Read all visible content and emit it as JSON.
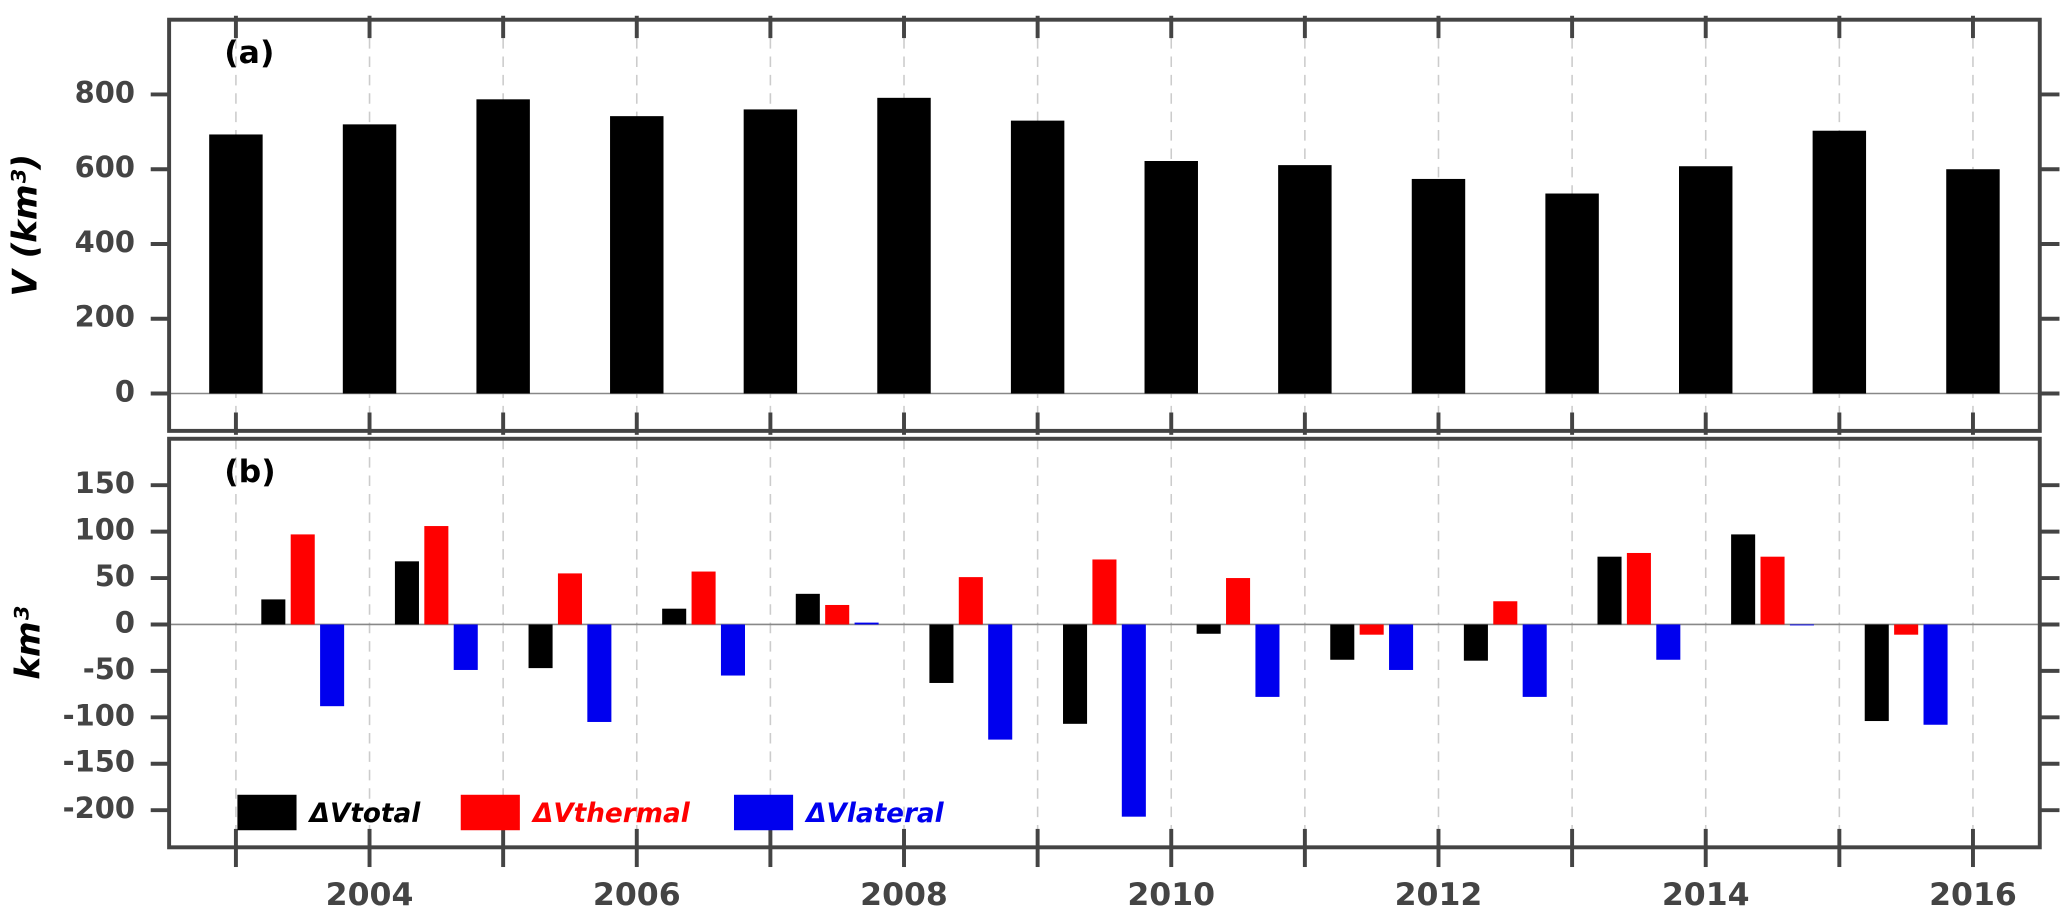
{
  "chart_data": [
    {
      "type": "bar",
      "panel_label": "(a)",
      "y_label": "V (km³)",
      "x": [
        2003,
        2004,
        2005,
        2006,
        2007,
        2008,
        2009,
        2010,
        2011,
        2012,
        2013,
        2014,
        2015,
        2016
      ],
      "series": [
        {
          "name": "V",
          "color": "#000000",
          "values": [
            693,
            720,
            787,
            742,
            760,
            791,
            730,
            622,
            611,
            574,
            535,
            608,
            703,
            600
          ]
        }
      ],
      "xlim": [
        2002.5,
        2016.5
      ],
      "xticks": [
        2004,
        2006,
        2008,
        2010,
        2012,
        2014,
        2016
      ],
      "xminor_ticks": [
        2003,
        2005,
        2007,
        2009,
        2011,
        2013,
        2015
      ],
      "ylim": [
        -100,
        1000
      ],
      "yticks": [
        0,
        200,
        400,
        600,
        800
      ],
      "grid": true
    },
    {
      "type": "grouped_bar",
      "panel_label": "(b)",
      "y_label": "km³",
      "x": [
        2003.5,
        2004.5,
        2005.5,
        2006.5,
        2007.5,
        2008.5,
        2009.5,
        2010.5,
        2011.5,
        2012.5,
        2013.5,
        2014.5,
        2015.5
      ],
      "series": [
        {
          "name": "ΔVtotal",
          "color": "#000000",
          "values": [
            27,
            68,
            -47,
            17,
            33,
            -63,
            -107,
            -10,
            -38,
            -39,
            73,
            97,
            -104
          ]
        },
        {
          "name": "ΔVthermal",
          "color": "#ff0000",
          "values": [
            97,
            106,
            55,
            57,
            21,
            51,
            70,
            50,
            -11,
            25,
            77,
            73,
            -11
          ]
        },
        {
          "name": "ΔVlateral",
          "color": "#0000ee",
          "values": [
            -88,
            -49,
            -105,
            -55,
            2,
            -124,
            -207,
            -78,
            -49,
            -78,
            -38,
            -1,
            -108
          ]
        }
      ],
      "xlim": [
        2002.5,
        2016.5
      ],
      "xticks": [
        2004,
        2006,
        2008,
        2010,
        2012,
        2014,
        2016
      ],
      "xminor_ticks": [
        2003,
        2005,
        2007,
        2009,
        2011,
        2013,
        2015
      ],
      "ylim": [
        -240,
        200
      ],
      "yticks": [
        150,
        100,
        50,
        0,
        -50,
        -100,
        -150,
        -200
      ],
      "grid": true,
      "legend": "lower left"
    }
  ]
}
